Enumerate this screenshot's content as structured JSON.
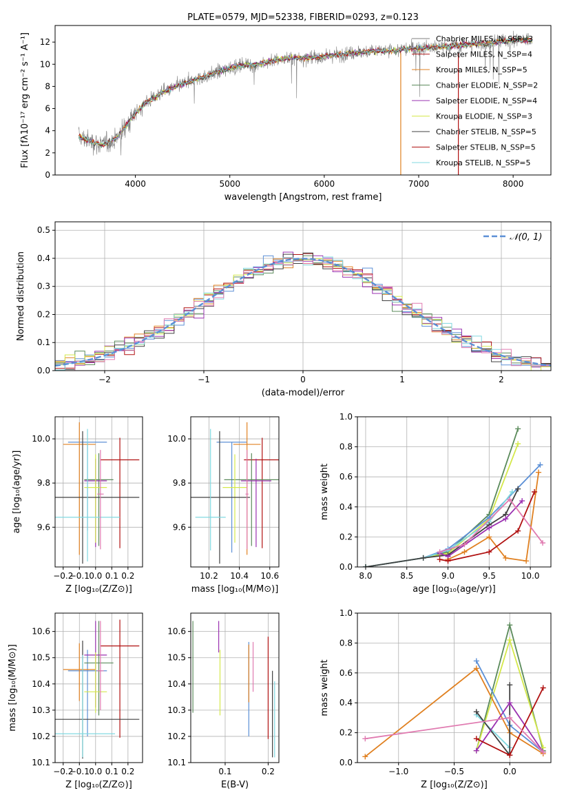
{
  "colors": [
    "#7f7f7f",
    "#d62728",
    "#ff7f0e",
    "#2ca02c",
    "#9467bd",
    "#bcbd22",
    "#000000",
    "#8b0000",
    "#17becf"
  ],
  "chart_data": [
    {
      "id": "spectrum",
      "type": "line",
      "title": "PLATE=0579, MJD=52338, FIBERID=0293, z=0.123",
      "xlabel": "wavelength [Angstrom, rest frame]",
      "ylabel": "Flux [fλ10⁻¹⁷ erg cm⁻² s⁻¹ A⁻¹]",
      "xlim": [
        3150,
        8400
      ],
      "ylim": [
        0,
        13.5
      ],
      "xticks": [
        4000,
        5000,
        6000,
        7000,
        8000
      ],
      "yticks": [
        0,
        2,
        4,
        6,
        8,
        10,
        12
      ],
      "grid": false,
      "legend_position": "top-right",
      "legend": [
        {
          "name": "Chabrier MILES, N_SSP=3",
          "color": "#7f7f7f"
        },
        {
          "name": "Salpeter MILES, N_SSP=4",
          "color": "#b22222"
        },
        {
          "name": "Kroupa MILES, N_SSP=5",
          "color": "#e08020"
        },
        {
          "name": "Chabrier ELODIE, N_SSP=2",
          "color": "#5a8a5a"
        },
        {
          "name": "Salpeter ELODIE, N_SSP=4",
          "color": "#9a30b0"
        },
        {
          "name": "Kroupa ELODIE, N_SSP=3",
          "color": "#d4e84a"
        },
        {
          "name": "Chabrier STELIB, N_SSP=5",
          "color": "#404040"
        },
        {
          "name": "Salpeter STELIB, N_SSP=5",
          "color": "#b01010"
        },
        {
          "name": "Kroupa STELIB, N_SSP=5",
          "color": "#80d8e0"
        }
      ],
      "continuum": {
        "x": [
          3400,
          3500,
          3650,
          3800,
          3950,
          4100,
          4300,
          4500,
          4700,
          4900,
          5100,
          5300,
          5500,
          5700,
          5900,
          6100,
          6300,
          6500,
          6700,
          6900,
          7100,
          7300,
          7500,
          7700,
          7900,
          8100
        ],
        "y": [
          3.5,
          3.1,
          2.7,
          3.3,
          5.0,
          6.5,
          7.5,
          8.2,
          8.8,
          9.4,
          9.9,
          10.0,
          10.4,
          10.6,
          10.6,
          10.8,
          11.0,
          11.2,
          11.2,
          11.4,
          11.5,
          11.6,
          11.8,
          11.9,
          12.1,
          12.2
        ]
      }
    },
    {
      "id": "residual-hist",
      "type": "line",
      "xlabel": "(data-model)/error",
      "ylabel": "Normed distribution",
      "xlim": [
        -2.5,
        2.5
      ],
      "ylim": [
        0,
        0.53
      ],
      "xticks": [
        -2,
        -1,
        0,
        1,
        2
      ],
      "yticks": [
        0.0,
        0.1,
        0.2,
        0.3,
        0.4,
        0.5
      ],
      "grid": true,
      "legend_position": "top-right",
      "gaussian_label": "𝒩(0, 1)",
      "gaussian_color": "#5b8fd6",
      "bin_width": 0.1
    },
    {
      "id": "age-vs-Z",
      "type": "scatter",
      "xlabel": "Z [log₁₀(Z/Z⊙)]",
      "ylabel": "age  [log₁₀(age/yr)]",
      "xlim": [
        -0.25,
        0.29
      ],
      "ylim": [
        9.42,
        10.1
      ],
      "xticks": [
        -0.2,
        -0.1,
        0.0,
        0.1,
        0.2
      ],
      "yticks": [
        9.6,
        9.8,
        10.0
      ],
      "grid": true,
      "points": [
        {
          "x": -0.05,
          "y": 9.985,
          "xerr": 0.12,
          "yerr": [
            0.4,
            0.0
          ],
          "color": "#5b8fd6"
        },
        {
          "x": -0.1,
          "y": 9.975,
          "xerr": 0.1,
          "yerr": [
            0.5,
            0.1
          ],
          "color": "#e08020"
        },
        {
          "x": 0.15,
          "y": 9.905,
          "xerr": 0.12,
          "yerr": [
            0.4,
            0.1
          ],
          "color": "#b01010"
        },
        {
          "x": 0.02,
          "y": 9.815,
          "xerr": 0.09,
          "yerr": [
            0.3,
            0.12
          ],
          "color": "#5a8a5a"
        },
        {
          "x": 0.0,
          "y": 9.81,
          "xerr": 0.07,
          "yerr": [
            0.3,
            0.1
          ],
          "color": "#9a30b0"
        },
        {
          "x": 0.0,
          "y": 9.78,
          "xerr": 0.07,
          "yerr": [
            0.25,
            0.15
          ],
          "color": "#d4e84a"
        },
        {
          "x": -0.08,
          "y": 9.735,
          "xerr": 0.35,
          "yerr": [
            0.3,
            0.3
          ],
          "color": "#404040"
        },
        {
          "x": -0.05,
          "y": 9.645,
          "xerr": 0.2,
          "yerr": [
            0.2,
            0.4
          ],
          "color": "#80d8e0"
        },
        {
          "x": 0.03,
          "y": 9.75,
          "xerr": 0.02,
          "yerr": [
            0.25,
            0.2
          ],
          "color": "#e07ab0"
        }
      ]
    },
    {
      "id": "age-vs-mass",
      "type": "scatter",
      "xlabel": "mass [log₁₀(M/M⊙)]",
      "ylabel": "",
      "xlim": [
        10.08,
        10.66
      ],
      "ylim": [
        9.42,
        10.1
      ],
      "xticks": [
        10.2,
        10.4,
        10.6
      ],
      "yticks": [
        9.6,
        9.8,
        10.0
      ],
      "grid": true,
      "points": [
        {
          "x": 10.35,
          "y": 9.985,
          "xerr": 0.1,
          "yerr": [
            0.5,
            0.0
          ],
          "color": "#5b8fd6"
        },
        {
          "x": 10.45,
          "y": 9.975,
          "xerr": 0.09,
          "yerr": [
            0.5,
            0.1
          ],
          "color": "#e08020"
        },
        {
          "x": 10.55,
          "y": 9.905,
          "xerr": 0.12,
          "yerr": [
            0.4,
            0.1
          ],
          "color": "#b01010"
        },
        {
          "x": 10.48,
          "y": 9.815,
          "xerr": 0.18,
          "yerr": [
            0.3,
            0.12
          ],
          "color": "#5a8a5a"
        },
        {
          "x": 10.51,
          "y": 9.81,
          "xerr": 0.1,
          "yerr": [
            0.3,
            0.1
          ],
          "color": "#9a30b0"
        },
        {
          "x": 10.37,
          "y": 9.78,
          "xerr": 0.08,
          "yerr": [
            0.25,
            0.15
          ],
          "color": "#d4e84a"
        },
        {
          "x": 10.27,
          "y": 9.735,
          "xerr": 0.2,
          "yerr": [
            0.3,
            0.3
          ],
          "color": "#404040"
        },
        {
          "x": 10.21,
          "y": 9.645,
          "xerr": 0.1,
          "yerr": [
            0.15,
            0.4
          ],
          "color": "#80d8e0"
        },
        {
          "x": 10.45,
          "y": 9.75,
          "xerr": 0.01,
          "yerr": [
            0.25,
            0.2
          ],
          "color": "#e07ab0"
        }
      ]
    },
    {
      "id": "mass-weight-vs-age",
      "type": "line",
      "xlabel": "age  [log₁₀(age/yr)]",
      "ylabel": "mass weight",
      "xlim": [
        7.9,
        10.25
      ],
      "ylim": [
        0,
        1.0
      ],
      "xticks": [
        8.0,
        8.5,
        9.0,
        9.5,
        10.0
      ],
      "yticks": [
        0.0,
        0.2,
        0.4,
        0.6,
        0.8,
        1.0
      ],
      "grid": true,
      "series": [
        {
          "color": "#5a8a5a",
          "x": [
            8.0,
            8.7,
            9.0,
            9.5,
            9.85
          ],
          "y": [
            0.0,
            0.06,
            0.1,
            0.35,
            0.92
          ]
        },
        {
          "color": "#d4e84a",
          "x": [
            8.0,
            8.7,
            9.0,
            9.5,
            9.85
          ],
          "y": [
            0.0,
            0.06,
            0.09,
            0.32,
            0.82
          ]
        },
        {
          "color": "#5b8fd6",
          "x": [
            8.0,
            8.7,
            9.0,
            9.5,
            10.12
          ],
          "y": [
            0.0,
            0.06,
            0.12,
            0.33,
            0.68
          ]
        },
        {
          "color": "#e08020",
          "x": [
            9.0,
            9.2,
            9.5,
            9.7,
            9.95,
            10.1
          ],
          "y": [
            0.05,
            0.1,
            0.2,
            0.06,
            0.04,
            0.63
          ]
        },
        {
          "color": "#80d8e0",
          "x": [
            8.0,
            8.7,
            9.0,
            9.5,
            9.78
          ],
          "y": [
            0.0,
            0.06,
            0.11,
            0.3,
            0.5
          ]
        },
        {
          "color": "#404040",
          "x": [
            8.0,
            8.7,
            9.0,
            9.5,
            9.7,
            9.85
          ],
          "y": [
            0.0,
            0.06,
            0.08,
            0.28,
            0.35,
            0.52
          ]
        },
        {
          "color": "#9a30b0",
          "x": [
            8.9,
            9.0,
            9.5,
            9.7,
            9.9
          ],
          "y": [
            0.09,
            0.07,
            0.26,
            0.32,
            0.44
          ]
        },
        {
          "color": "#b01010",
          "x": [
            8.9,
            9.0,
            9.5,
            9.85,
            10.05
          ],
          "y": [
            0.05,
            0.04,
            0.1,
            0.24,
            0.5
          ]
        },
        {
          "color": "#e07ab0",
          "x": [
            8.9,
            9.2,
            9.75,
            10.15
          ],
          "y": [
            0.1,
            0.15,
            0.45,
            0.16
          ]
        }
      ]
    },
    {
      "id": "mass-vs-Z",
      "type": "scatter",
      "xlabel": "Z [log₁₀(Z/Z⊙)]",
      "ylabel": "mass [log₁₀(M/M⊙)]",
      "xlim": [
        -0.25,
        0.29
      ],
      "ylim": [
        10.1,
        10.67
      ],
      "xticks": [
        -0.2,
        -0.1,
        0.0,
        0.1,
        0.2
      ],
      "yticks": [
        10.1,
        10.2,
        10.3,
        10.4,
        10.5,
        10.6
      ],
      "grid": true,
      "points": [
        {
          "x": -0.05,
          "y": 10.45,
          "xerr": 0.12,
          "yerr": [
            0.25,
            0.08
          ],
          "color": "#5b8fd6"
        },
        {
          "x": -0.1,
          "y": 10.455,
          "xerr": 0.1,
          "yerr": [
            0.12,
            0.1
          ],
          "color": "#e08020"
        },
        {
          "x": 0.15,
          "y": 10.545,
          "xerr": 0.12,
          "yerr": [
            0.35,
            0.1
          ],
          "color": "#b01010"
        },
        {
          "x": 0.02,
          "y": 10.48,
          "xerr": 0.09,
          "yerr": [
            0.2,
            0.16
          ],
          "color": "#5a8a5a"
        },
        {
          "x": 0.0,
          "y": 10.51,
          "xerr": 0.07,
          "yerr": [
            0.2,
            0.13
          ],
          "color": "#9a30b0"
        },
        {
          "x": 0.0,
          "y": 10.37,
          "xerr": 0.07,
          "yerr": [
            0.08,
            0.15
          ],
          "color": "#d4e84a"
        },
        {
          "x": -0.08,
          "y": 10.265,
          "xerr": 0.35,
          "yerr": [
            0.15,
            0.3
          ],
          "color": "#404040"
        },
        {
          "x": -0.08,
          "y": 10.21,
          "xerr": 0.2,
          "yerr": [
            0.09,
            0.3
          ],
          "color": "#80d8e0"
        },
        {
          "x": 0.03,
          "y": 10.45,
          "xerr": 0.02,
          "yerr": [
            0.15,
            0.19
          ],
          "color": "#e07ab0"
        }
      ]
    },
    {
      "id": "mass-vs-EBV",
      "type": "scatter",
      "xlabel": "E(B-V)",
      "ylabel": "",
      "xlim": [
        0.02,
        0.225
      ],
      "ylim": [
        10.1,
        10.67
      ],
      "xticks": [
        0.1,
        0.2
      ],
      "yticks": [
        10.1,
        10.2,
        10.3,
        10.4,
        10.5,
        10.6
      ],
      "grid": true,
      "points": [
        {
          "x": 0.155,
          "y": 10.4,
          "yerr": [
            0.2,
            0.16
          ],
          "color": "#5b8fd6"
        },
        {
          "x": 0.155,
          "y": 10.45,
          "yerr": [
            0.12,
            0.1
          ],
          "color": "#e08020"
        },
        {
          "x": 0.2,
          "y": 10.4,
          "yerr": [
            0.21,
            0.18
          ],
          "color": "#b01010"
        },
        {
          "x": 0.025,
          "y": 10.47,
          "yerr": [
            0.18,
            0.17
          ],
          "color": "#5a8a5a"
        },
        {
          "x": 0.085,
          "y": 10.58,
          "yerr": [
            0.06,
            0.06
          ],
          "color": "#9a30b0"
        },
        {
          "x": 0.088,
          "y": 10.42,
          "yerr": [
            0.14,
            0.11
          ],
          "color": "#d4e84a"
        },
        {
          "x": 0.21,
          "y": 10.3,
          "yerr": [
            0.18,
            0.15
          ],
          "color": "#404040"
        },
        {
          "x": 0.215,
          "y": 10.27,
          "yerr": [
            0.15,
            0.14
          ],
          "color": "#80d8e0"
        },
        {
          "x": 0.165,
          "y": 10.45,
          "yerr": [
            0.08,
            0.11
          ],
          "color": "#e07ab0"
        }
      ]
    },
    {
      "id": "mass-weight-vs-Z",
      "type": "line",
      "xlabel": "Z [log₁₀(Z/Z⊙)]",
      "ylabel": "mass weight",
      "xlim": [
        -1.37,
        0.37
      ],
      "ylim": [
        0,
        1.0
      ],
      "xticks": [
        -1.0,
        -0.5,
        0.0
      ],
      "yticks": [
        0.0,
        0.2,
        0.4,
        0.6,
        0.8,
        1.0
      ],
      "grid": true,
      "series": [
        {
          "color": "#5a8a5a",
          "x": [
            -0.3,
            0.0,
            0.3
          ],
          "y": [
            0.08,
            0.92,
            0.08
          ]
        },
        {
          "color": "#d4e84a",
          "x": [
            -0.3,
            0.0,
            0.3
          ],
          "y": [
            0.08,
            0.82,
            0.1
          ]
        },
        {
          "color": "#5b8fd6",
          "x": [
            -0.3,
            0.0,
            0.3
          ],
          "y": [
            0.68,
            0.25,
            0.07
          ]
        },
        {
          "color": "#e08020",
          "x": [
            -1.3,
            -0.3,
            0.0,
            0.3
          ],
          "y": [
            0.04,
            0.63,
            0.2,
            0.06
          ]
        },
        {
          "color": "#80d8e0",
          "x": [
            -0.3,
            0.0,
            0.0
          ],
          "y": [
            0.32,
            0.1,
            0.07
          ]
        },
        {
          "color": "#404040",
          "x": [
            -0.3,
            0.0,
            0.0
          ],
          "y": [
            0.34,
            0.05,
            0.52
          ]
        },
        {
          "color": "#9a30b0",
          "x": [
            -0.3,
            0.0,
            0.3
          ],
          "y": [
            0.08,
            0.4,
            0.07
          ]
        },
        {
          "color": "#b01010",
          "x": [
            -0.3,
            0.0,
            0.3
          ],
          "y": [
            0.16,
            0.05,
            0.5
          ]
        },
        {
          "color": "#e07ab0",
          "x": [
            -1.3,
            0.0,
            0.3
          ],
          "y": [
            0.16,
            0.3,
            0.07
          ]
        }
      ]
    }
  ]
}
